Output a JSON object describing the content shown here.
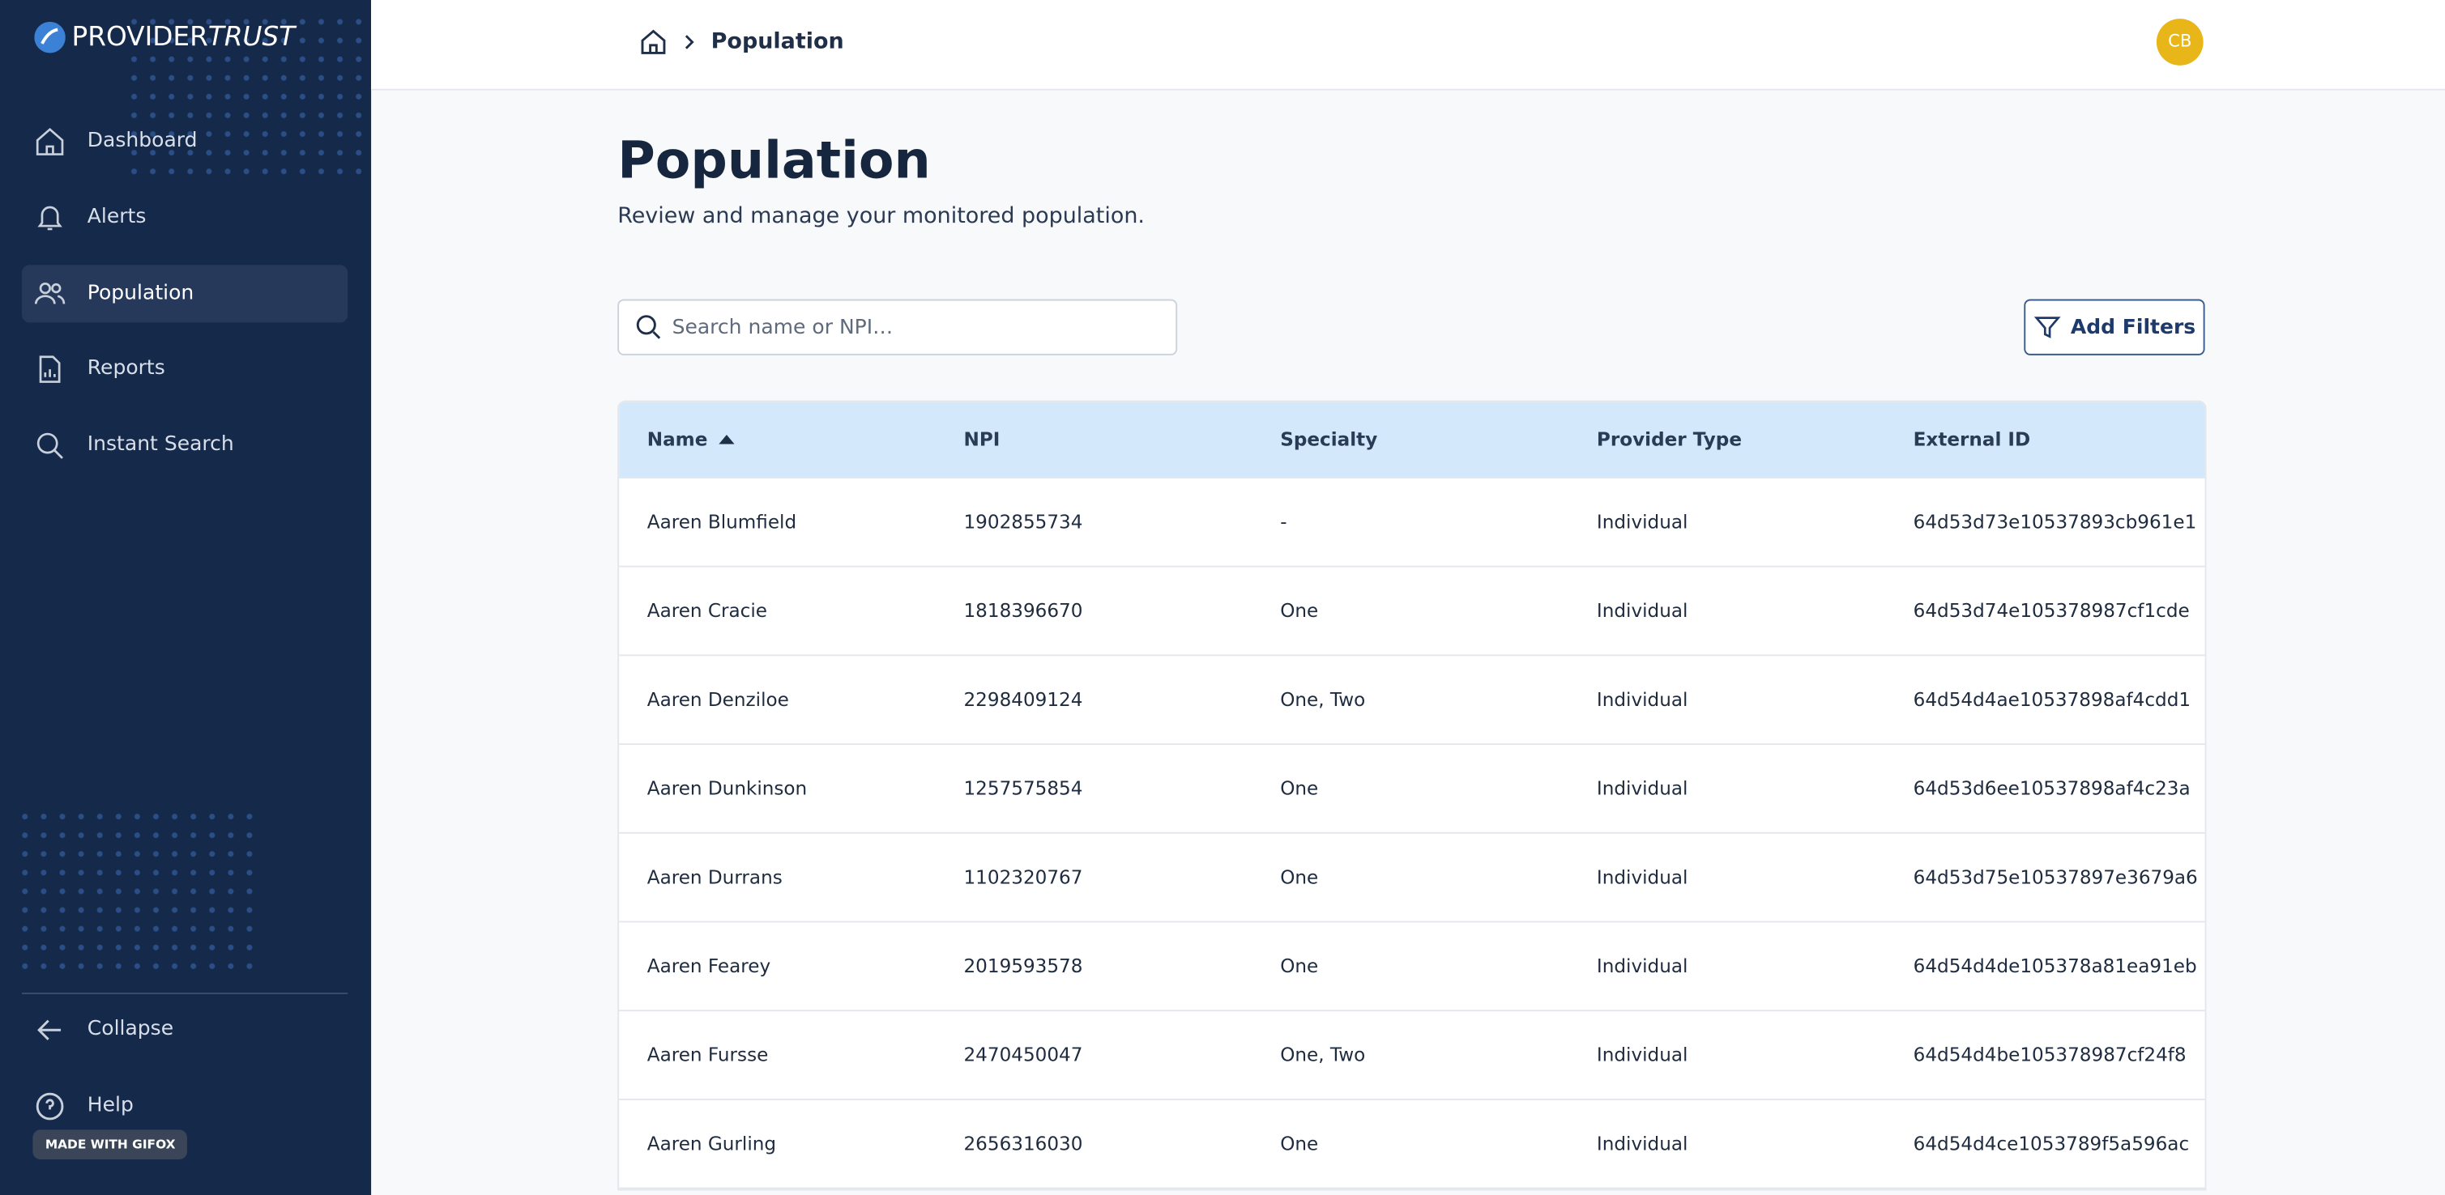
{
  "brand": {
    "name": "PROVIDER",
    "name_italic": "TRUST"
  },
  "nav": {
    "items": [
      "Dashboard",
      "Alerts",
      "Population",
      "Reports",
      "Instant Search"
    ],
    "active": 2,
    "collapse": "Collapse",
    "help": "Help"
  },
  "badge": "MADE WITH GIFOX",
  "header": {
    "breadcrumb": "Population",
    "avatar": "CB"
  },
  "page": {
    "title": "Population",
    "subtitle": "Review and manage your monitored population.",
    "search_placeholder": "Search name or NPI…",
    "filter_button": "Add Filters"
  },
  "table": {
    "columns": [
      "Name",
      "NPI",
      "Specialty",
      "Provider Type",
      "External ID"
    ],
    "rows": [
      [
        "Aaren Blumfield",
        "1902855734",
        "-",
        "Individual",
        "64d53d73e10537893cb961e1"
      ],
      [
        "Aaren Cracie",
        "1818396670",
        "One",
        "Individual",
        "64d53d74e105378987cf1cde"
      ],
      [
        "Aaren Denziloe",
        "2298409124",
        "One, Two",
        "Individual",
        "64d54d4ae10537898af4cdd1"
      ],
      [
        "Aaren Dunkinson",
        "1257575854",
        "One",
        "Individual",
        "64d53d6ee10537898af4c23a"
      ],
      [
        "Aaren Durrans",
        "1102320767",
        "One",
        "Individual",
        "64d53d75e10537897e3679a6"
      ],
      [
        "Aaren Fearey",
        "2019593578",
        "One",
        "Individual",
        "64d54d4de105378a81ea91eb"
      ],
      [
        "Aaren Fursse",
        "2470450047",
        "One, Two",
        "Individual",
        "64d54d4be105378987cf24f8"
      ],
      [
        "Aaren Gurling",
        "2656316030",
        "One",
        "Individual",
        "64d54d4ce1053789f5a596ac"
      ]
    ]
  }
}
